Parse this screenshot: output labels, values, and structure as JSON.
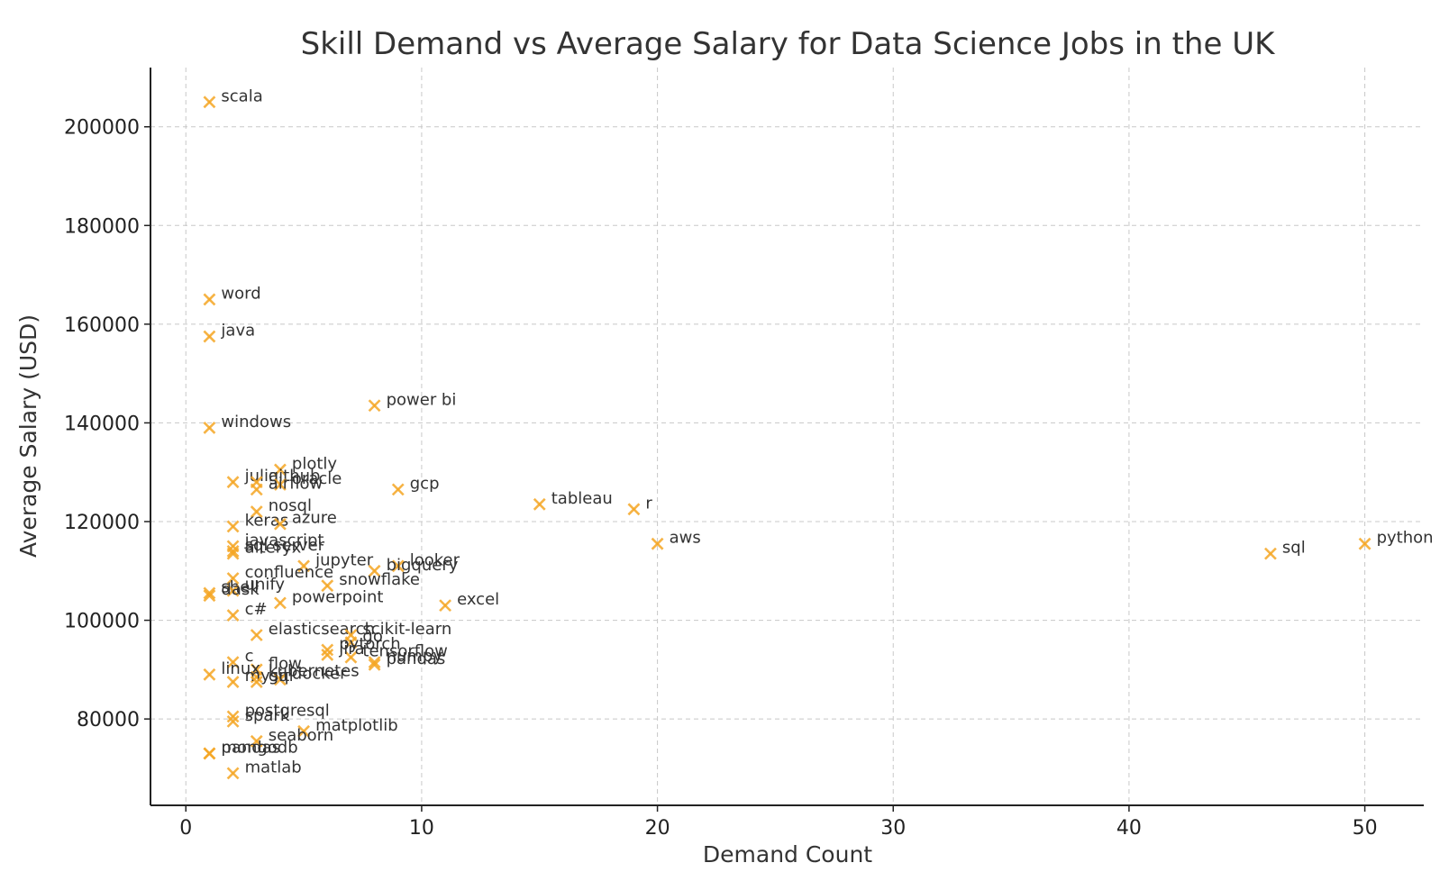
{
  "chart_data": {
    "type": "scatter",
    "title": "Skill Demand vs Average Salary for Data Science Jobs in the UK",
    "xlabel": "Demand Count",
    "ylabel": "Average Salary (USD)",
    "xlim": [
      -1.5,
      52.5
    ],
    "ylim": [
      62500,
      212000
    ],
    "xticks": [
      0,
      10,
      20,
      30,
      40,
      50
    ],
    "yticks": [
      80000,
      100000,
      120000,
      140000,
      160000,
      180000,
      200000
    ],
    "grid": true,
    "marker_color": "#f5a623",
    "points": [
      {
        "label": "scala",
        "x": 1,
        "y": 205000
      },
      {
        "label": "word",
        "x": 1,
        "y": 165000
      },
      {
        "label": "java",
        "x": 1,
        "y": 157500
      },
      {
        "label": "windows",
        "x": 1,
        "y": 139000
      },
      {
        "label": "power bi",
        "x": 8,
        "y": 143500
      },
      {
        "label": "plotly",
        "x": 4,
        "y": 130500
      },
      {
        "label": "julia",
        "x": 2,
        "y": 128000
      },
      {
        "label": "github",
        "x": 3,
        "y": 128000
      },
      {
        "label": "oracle",
        "x": 4,
        "y": 127500
      },
      {
        "label": "airflow",
        "x": 3,
        "y": 126500
      },
      {
        "label": "gcp",
        "x": 9,
        "y": 126500
      },
      {
        "label": "tableau",
        "x": 15,
        "y": 123500
      },
      {
        "label": "r",
        "x": 19,
        "y": 122500
      },
      {
        "label": "nosql",
        "x": 3,
        "y": 122000
      },
      {
        "label": "keras",
        "x": 2,
        "y": 119000
      },
      {
        "label": "azure",
        "x": 4,
        "y": 119500
      },
      {
        "label": "javascript",
        "x": 2,
        "y": 115000
      },
      {
        "label": "aws",
        "x": 20,
        "y": 115500
      },
      {
        "label": "python",
        "x": 50,
        "y": 115500
      },
      {
        "label": "sql",
        "x": 46,
        "y": 113500
      },
      {
        "label": "sql server",
        "x": 2,
        "y": 114000
      },
      {
        "label": "alteryx",
        "x": 2,
        "y": 113500
      },
      {
        "label": "jupyter",
        "x": 5,
        "y": 111000
      },
      {
        "label": "looker",
        "x": 9,
        "y": 111000
      },
      {
        "label": "bigquery",
        "x": 8,
        "y": 110000
      },
      {
        "label": "confluence",
        "x": 2,
        "y": 108500
      },
      {
        "label": "snowflake",
        "x": 6,
        "y": 107000
      },
      {
        "label": "shell",
        "x": 1,
        "y": 105500
      },
      {
        "label": "unify",
        "x": 2,
        "y": 106000
      },
      {
        "label": "dask",
        "x": 1,
        "y": 105000
      },
      {
        "label": "powerpoint",
        "x": 4,
        "y": 103500
      },
      {
        "label": "excel",
        "x": 11,
        "y": 103000
      },
      {
        "label": "c#",
        "x": 2,
        "y": 101000
      },
      {
        "label": "elasticsearch",
        "x": 3,
        "y": 97000
      },
      {
        "label": "scikit-learn",
        "x": 7,
        "y": 97000
      },
      {
        "label": "go",
        "x": 7,
        "y": 95500
      },
      {
        "label": "pytorch",
        "x": 6,
        "y": 94000
      },
      {
        "label": "tensorflow",
        "x": 7,
        "y": 92500
      },
      {
        "label": "jira",
        "x": 6,
        "y": 93000
      },
      {
        "label": "numpy",
        "x": 8,
        "y": 91500
      },
      {
        "label": "pandas",
        "x": 8,
        "y": 91000
      },
      {
        "label": "c",
        "x": 2,
        "y": 91500
      },
      {
        "label": "flow",
        "x": 3,
        "y": 90000
      },
      {
        "label": "linux",
        "x": 1,
        "y": 89000
      },
      {
        "label": "kubernetes",
        "x": 3,
        "y": 88500
      },
      {
        "label": "docker",
        "x": 4,
        "y": 88000
      },
      {
        "label": "mysql",
        "x": 2,
        "y": 87500
      },
      {
        "label": "git",
        "x": 3,
        "y": 87500
      },
      {
        "label": "spark",
        "x": 2,
        "y": 79500
      },
      {
        "label": "postgresql",
        "x": 2,
        "y": 80500
      },
      {
        "label": "matplotlib",
        "x": 5,
        "y": 77500
      },
      {
        "label": "seaborn",
        "x": 3,
        "y": 75500
      },
      {
        "label": "pandas",
        "x": 1,
        "y": 73000
      },
      {
        "label": "mongodb",
        "x": 1,
        "y": 73000
      },
      {
        "label": "matlab",
        "x": 2,
        "y": 69000
      }
    ]
  }
}
